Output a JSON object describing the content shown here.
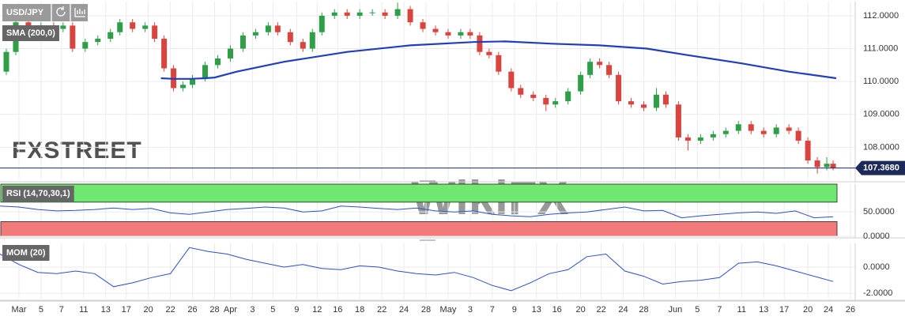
{
  "chart_data": [
    {
      "type": "candlestick",
      "title": "USD/JPY",
      "watermark": "FXSTREET",
      "watermark2": "WikiFX",
      "xlim": [
        0,
        271
      ],
      "ylim": [
        107.0,
        112.43
      ],
      "yticks": [
        {
          "value": 108,
          "label": "108.0000"
        },
        {
          "value": 109,
          "label": "109.0000"
        },
        {
          "value": 110,
          "label": "110.0000"
        },
        {
          "value": 111,
          "label": "111.0000"
        },
        {
          "value": 112,
          "label": "112.0000"
        }
      ],
      "up_color": "#2e9e47",
      "down_color": "#d9443f",
      "price_label": "107.3680",
      "x": [
        2,
        5,
        9,
        13,
        17,
        20,
        23,
        27,
        31,
        35,
        38,
        42,
        46,
        49,
        52,
        55,
        58,
        61,
        65,
        69,
        73,
        77,
        81,
        85,
        88,
        92,
        96,
        99,
        102,
        106,
        110,
        114,
        118,
        122,
        126,
        130,
        134,
        138,
        142,
        146,
        149,
        152,
        155,
        158,
        162,
        165,
        169,
        173,
        176,
        180,
        184,
        187,
        190,
        193,
        196,
        200,
        204,
        208,
        211,
        215,
        218,
        222,
        226,
        230,
        234,
        238,
        242,
        246,
        250,
        253,
        256,
        259,
        262,
        264
      ],
      "open": [
        110.3,
        110.9,
        111.8,
        111.6,
        111.7,
        111.6,
        111.7,
        111.0,
        111.2,
        111.3,
        111.5,
        111.8,
        111.6,
        111.7,
        111.3,
        110.4,
        109.8,
        109.9,
        110.1,
        110.5,
        110.7,
        111.0,
        111.4,
        111.5,
        111.7,
        111.5,
        111.2,
        111.0,
        111.5,
        112.0,
        112.1,
        112.0,
        112.1,
        112.1,
        112.0,
        112.2,
        111.8,
        111.6,
        111.5,
        111.4,
        111.5,
        111.4,
        110.9,
        110.8,
        110.3,
        109.8,
        109.6,
        109.5,
        109.3,
        109.4,
        109.7,
        110.2,
        110.6,
        110.5,
        110.2,
        109.4,
        109.3,
        109.2,
        109.6,
        109.3,
        108.3,
        108.2,
        108.3,
        108.4,
        108.5,
        108.7,
        108.5,
        108.4,
        108.6,
        108.5,
        108.2,
        107.6,
        107.4,
        107.5
      ],
      "high": [
        111.0,
        111.9,
        111.9,
        111.8,
        111.8,
        111.8,
        111.8,
        111.3,
        111.4,
        111.6,
        111.9,
        111.9,
        111.8,
        111.8,
        111.4,
        110.5,
        110.0,
        110.2,
        110.6,
        110.8,
        111.1,
        111.5,
        111.6,
        111.8,
        111.8,
        111.6,
        111.3,
        111.6,
        112.1,
        112.2,
        112.2,
        112.2,
        112.2,
        112.2,
        112.4,
        112.3,
        111.9,
        111.7,
        111.6,
        111.6,
        111.6,
        111.5,
        111.0,
        110.9,
        110.4,
        109.9,
        109.7,
        109.6,
        109.5,
        109.8,
        110.3,
        110.7,
        110.7,
        110.6,
        110.3,
        109.5,
        109.4,
        109.8,
        109.7,
        109.4,
        108.4,
        108.4,
        108.5,
        108.6,
        108.8,
        108.8,
        108.6,
        108.7,
        108.7,
        108.6,
        108.3,
        107.7,
        107.7,
        107.6
      ],
      "low": [
        110.2,
        110.8,
        111.5,
        111.5,
        111.5,
        111.5,
        110.9,
        110.9,
        111.1,
        111.2,
        111.4,
        111.5,
        111.5,
        111.2,
        110.3,
        109.7,
        109.7,
        109.8,
        110.0,
        110.4,
        110.6,
        110.9,
        111.3,
        111.4,
        111.4,
        111.1,
        110.9,
        110.9,
        111.4,
        111.9,
        111.9,
        111.9,
        112.0,
        111.9,
        111.9,
        111.7,
        111.5,
        111.4,
        111.3,
        111.3,
        111.3,
        110.8,
        110.7,
        110.2,
        109.7,
        109.5,
        109.4,
        109.1,
        109.2,
        109.3,
        109.6,
        110.1,
        110.4,
        110.1,
        109.3,
        109.2,
        109.1,
        109.1,
        109.2,
        108.2,
        107.9,
        108.1,
        108.2,
        108.3,
        108.4,
        108.4,
        108.3,
        108.3,
        108.4,
        108.1,
        107.5,
        107.2,
        107.3,
        107.3
      ],
      "close": [
        110.9,
        111.8,
        111.6,
        111.7,
        111.6,
        111.7,
        111.0,
        111.2,
        111.3,
        111.5,
        111.8,
        111.6,
        111.7,
        111.3,
        110.4,
        109.8,
        109.9,
        110.1,
        110.5,
        110.7,
        111.0,
        111.4,
        111.5,
        111.7,
        111.5,
        111.2,
        111.0,
        111.5,
        112.0,
        112.1,
        112.0,
        112.1,
        112.1,
        112.0,
        112.2,
        111.8,
        111.6,
        111.5,
        111.4,
        111.5,
        111.4,
        110.9,
        110.8,
        110.3,
        109.8,
        109.6,
        109.5,
        109.3,
        109.4,
        109.7,
        110.2,
        110.6,
        110.5,
        110.2,
        109.4,
        109.3,
        109.2,
        109.6,
        109.3,
        108.3,
        108.2,
        108.3,
        108.4,
        108.5,
        108.7,
        108.5,
        108.4,
        108.6,
        108.5,
        108.2,
        107.6,
        107.4,
        107.5,
        107.368
      ],
      "series": [
        {
          "name": "SMA (200,0)",
          "color": "#1f3fbf",
          "x": [
            51,
            55,
            60,
            65,
            68,
            75,
            90,
            110,
            130,
            150,
            160,
            175,
            190,
            205,
            218,
            235,
            250,
            265
          ],
          "values": [
            110.1,
            110.08,
            110.08,
            110.1,
            110.12,
            110.3,
            110.6,
            110.9,
            111.1,
            111.2,
            111.22,
            111.15,
            111.1,
            111.0,
            110.8,
            110.55,
            110.3,
            110.1
          ]
        }
      ]
    },
    {
      "type": "line",
      "xlim": [
        0,
        271
      ],
      "ylim": [
        0,
        107
      ],
      "yticks": [
        {
          "value": 0,
          "label": "0.0000"
        },
        {
          "value": 50,
          "label": "50.0000"
        }
      ],
      "bands": [
        {
          "range": [
            70,
            107
          ],
          "color": "#6ee86e"
        },
        {
          "range": [
            0,
            30
          ],
          "color": "#f27a7a"
        }
      ],
      "series": [
        {
          "name": "RSI (14,70,30,1)",
          "color": "#2a4fcf",
          "x": [
            0,
            6,
            12,
            18,
            24,
            30,
            36,
            42,
            48,
            54,
            60,
            66,
            72,
            78,
            84,
            90,
            96,
            102,
            108,
            114,
            120,
            126,
            132,
            138,
            144,
            150,
            156,
            162,
            168,
            174,
            180,
            186,
            192,
            198,
            204,
            210,
            216,
            222,
            228,
            234,
            240,
            246,
            252,
            258,
            264
          ],
          "values": [
            62,
            60,
            55,
            52,
            53,
            55,
            58,
            55,
            57,
            48,
            45,
            50,
            55,
            57,
            60,
            58,
            50,
            52,
            62,
            60,
            57,
            55,
            58,
            52,
            50,
            52,
            45,
            42,
            40,
            45,
            48,
            50,
            55,
            60,
            52,
            53,
            38,
            42,
            45,
            48,
            50,
            47,
            52,
            38,
            40
          ]
        }
      ]
    },
    {
      "type": "line",
      "xlim": [
        0,
        271
      ],
      "ylim": [
        -2.42,
        1.82
      ],
      "yticks": [
        {
          "value": -2,
          "label": "-2.0000"
        },
        {
          "value": 0,
          "label": "0.0000"
        }
      ],
      "xticks": [
        {
          "value": 6,
          "label": "Mar"
        },
        {
          "value": 13,
          "label": "5"
        },
        {
          "value": 19.5,
          "label": "7"
        },
        {
          "value": 26.5,
          "label": "11"
        },
        {
          "value": 33.5,
          "label": "13"
        },
        {
          "value": 40,
          "label": "17"
        },
        {
          "value": 47,
          "label": "20"
        },
        {
          "value": 54,
          "label": "22"
        },
        {
          "value": 61,
          "label": "26"
        },
        {
          "value": 68,
          "label": "28"
        },
        {
          "value": 73,
          "label": "Apr"
        },
        {
          "value": 80,
          "label": "3"
        },
        {
          "value": 86.5,
          "label": "5"
        },
        {
          "value": 94,
          "label": "9"
        },
        {
          "value": 100.5,
          "label": "12"
        },
        {
          "value": 107,
          "label": "16"
        },
        {
          "value": 114,
          "label": "18"
        },
        {
          "value": 121,
          "label": "22"
        },
        {
          "value": 128,
          "label": "24"
        },
        {
          "value": 135,
          "label": "28"
        },
        {
          "value": 142,
          "label": "May"
        },
        {
          "value": 149,
          "label": "3"
        },
        {
          "value": 156,
          "label": "7"
        },
        {
          "value": 163,
          "label": "9"
        },
        {
          "value": 170,
          "label": "13"
        },
        {
          "value": 176.5,
          "label": "16"
        },
        {
          "value": 184,
          "label": "20"
        },
        {
          "value": 190.5,
          "label": "22"
        },
        {
          "value": 197.5,
          "label": "24"
        },
        {
          "value": 204,
          "label": "28"
        },
        {
          "value": 214,
          "label": "Jun"
        },
        {
          "value": 221,
          "label": "5"
        },
        {
          "value": 228,
          "label": "7"
        },
        {
          "value": 235,
          "label": "11"
        },
        {
          "value": 242,
          "label": "13"
        },
        {
          "value": 248.5,
          "label": "17"
        },
        {
          "value": 256,
          "label": "20"
        },
        {
          "value": 262.5,
          "label": "24"
        },
        {
          "value": 269.5,
          "label": "26"
        }
      ],
      "series": [
        {
          "name": "MOM (20)",
          "color": "#2a4fcf",
          "x": [
            0,
            6,
            12,
            18,
            24,
            30,
            36,
            42,
            48,
            54,
            60,
            66,
            72,
            78,
            84,
            90,
            96,
            102,
            108,
            114,
            120,
            126,
            132,
            138,
            144,
            150,
            156,
            162,
            168,
            174,
            180,
            186,
            192,
            198,
            204,
            210,
            216,
            222,
            228,
            234,
            240,
            246,
            252,
            258,
            264
          ],
          "values": [
            1.0,
            0.2,
            -0.4,
            -0.5,
            -0.3,
            -0.5,
            -1.5,
            -1.2,
            -0.8,
            -0.5,
            1.5,
            1.2,
            1.0,
            0.6,
            0.3,
            0.0,
            0.2,
            -0.1,
            -0.2,
            0.1,
            0.0,
            -0.3,
            -0.5,
            -0.6,
            -0.4,
            -0.8,
            -1.4,
            -1.8,
            -1.2,
            -0.5,
            -0.2,
            0.8,
            1.0,
            -0.3,
            -0.7,
            -1.3,
            -1.1,
            -1.0,
            -0.8,
            0.3,
            0.4,
            0.1,
            -0.3,
            -0.7,
            -1.1
          ]
        }
      ]
    }
  ]
}
